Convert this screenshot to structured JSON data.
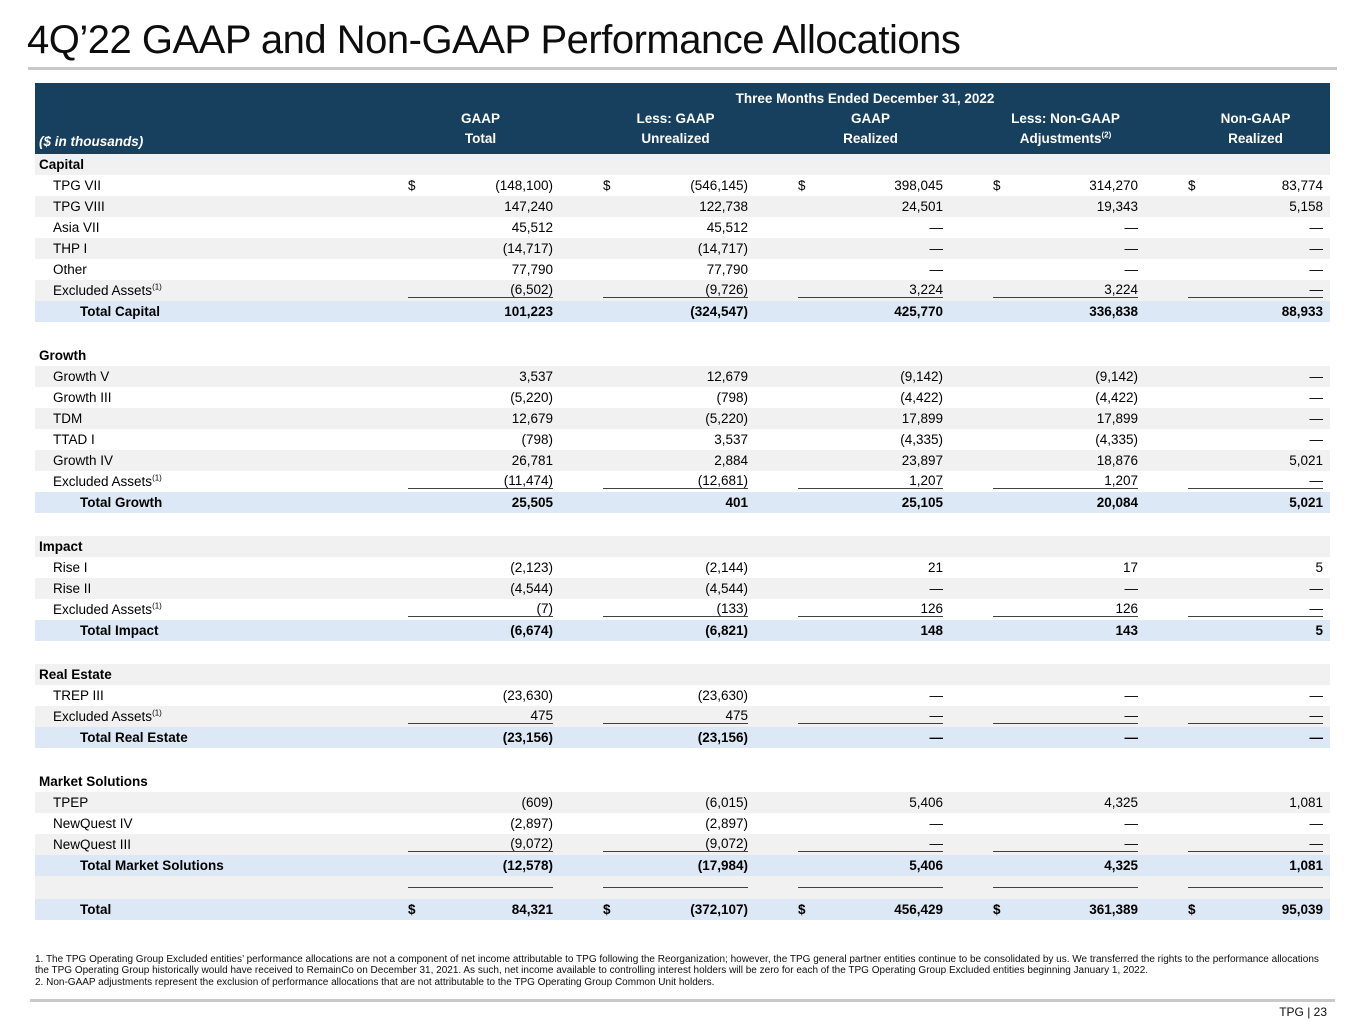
{
  "title": "4Q’22 GAAP and Non-GAAP Performance Allocations",
  "colors": {
    "header_navy": "#17405f",
    "total_row_blue": "#dce8f5",
    "stripe_gray": "#f2f1f1",
    "divider_gray": "#c9c9c9"
  },
  "table": {
    "period_header": "Three Months Ended December 31, 2022",
    "units_note": "($ in thousands)",
    "columns": [
      {
        "line1": "GAAP",
        "line2": "Total"
      },
      {
        "line1": "Less: GAAP",
        "line2": "Unrealized"
      },
      {
        "line1": "GAAP",
        "line2": "Realized"
      },
      {
        "line1": "Less: Non-GAAP",
        "line2": "Adjustments",
        "sup": "(2)"
      },
      {
        "line1": "Non-GAAP",
        "line2": "Realized"
      }
    ],
    "rows": [
      {
        "type": "section",
        "label": "Capital",
        "shade": "gray"
      },
      {
        "type": "item",
        "label": "TPG VII",
        "shade": "white",
        "dollars": true,
        "values": [
          "(148,100)",
          "(546,145)",
          "398,045",
          "314,270",
          "83,774"
        ]
      },
      {
        "type": "item",
        "label": "TPG VIII",
        "shade": "gray",
        "values": [
          "147,240",
          "122,738",
          "24,501",
          "19,343",
          "5,158"
        ]
      },
      {
        "type": "item",
        "label": "Asia VII",
        "shade": "white",
        "values": [
          "45,512",
          "45,512",
          "—",
          "—",
          "—"
        ]
      },
      {
        "type": "item",
        "label": "THP I",
        "shade": "gray",
        "values": [
          "(14,717)",
          "(14,717)",
          "—",
          "—",
          "—"
        ]
      },
      {
        "type": "item",
        "label": "Other",
        "shade": "white",
        "values": [
          "77,790",
          "77,790",
          "—",
          "—",
          "—"
        ]
      },
      {
        "type": "item",
        "label": "Excluded Assets",
        "sup": "(1)",
        "shade": "gray",
        "rule": true,
        "values": [
          "(6,502)",
          "(9,726)",
          "3,224",
          "3,224",
          "—"
        ]
      },
      {
        "type": "total",
        "label": "Total Capital",
        "shade": "blue",
        "values": [
          "101,223",
          "(324,547)",
          "425,770",
          "336,838",
          "88,933"
        ]
      },
      {
        "type": "spacer",
        "shade": "white"
      },
      {
        "type": "section",
        "label": "Growth",
        "shade": "white"
      },
      {
        "type": "item",
        "label": "Growth V",
        "shade": "gray",
        "values": [
          "3,537",
          "12,679",
          "(9,142)",
          "(9,142)",
          "—"
        ]
      },
      {
        "type": "item",
        "label": "Growth III",
        "shade": "white",
        "values": [
          "(5,220)",
          "(798)",
          "(4,422)",
          "(4,422)",
          "—"
        ]
      },
      {
        "type": "item",
        "label": "TDM",
        "shade": "gray",
        "values": [
          "12,679",
          "(5,220)",
          "17,899",
          "17,899",
          "—"
        ]
      },
      {
        "type": "item",
        "label": "TTAD I",
        "shade": "white",
        "values": [
          "(798)",
          "3,537",
          "(4,335)",
          "(4,335)",
          "—"
        ]
      },
      {
        "type": "item",
        "label": "Growth IV",
        "shade": "gray",
        "values": [
          "26,781",
          "2,884",
          "23,897",
          "18,876",
          "5,021"
        ]
      },
      {
        "type": "item",
        "label": "Excluded Assets",
        "sup": "(1)",
        "shade": "white",
        "rule": true,
        "values": [
          "(11,474)",
          "(12,681)",
          "1,207",
          "1,207",
          "—"
        ]
      },
      {
        "type": "total",
        "label": "Total Growth",
        "shade": "blue",
        "values": [
          "25,505",
          "401",
          "25,105",
          "20,084",
          "5,021"
        ]
      },
      {
        "type": "spacer",
        "shade": "white"
      },
      {
        "type": "section",
        "label": "Impact",
        "shade": "gray"
      },
      {
        "type": "item",
        "label": "Rise I",
        "shade": "white",
        "values": [
          "(2,123)",
          "(2,144)",
          "21",
          "17",
          "5"
        ]
      },
      {
        "type": "item",
        "label": "Rise II",
        "shade": "gray",
        "values": [
          "(4,544)",
          "(4,544)",
          "—",
          "—",
          "—"
        ]
      },
      {
        "type": "item",
        "label": "Excluded Assets",
        "sup": "(1)",
        "shade": "white",
        "rule": true,
        "values": [
          "(7)",
          "(133)",
          "126",
          "126",
          "—"
        ]
      },
      {
        "type": "total",
        "label": "Total Impact",
        "shade": "blue",
        "values": [
          "(6,674)",
          "(6,821)",
          "148",
          "143",
          "5"
        ]
      },
      {
        "type": "spacer",
        "shade": "white"
      },
      {
        "type": "section",
        "label": "Real Estate",
        "shade": "gray"
      },
      {
        "type": "item",
        "label": "TREP III",
        "shade": "white",
        "values": [
          "(23,630)",
          "(23,630)",
          "—",
          "—",
          "—"
        ]
      },
      {
        "type": "item",
        "label": "Excluded Assets",
        "sup": "(1)",
        "shade": "gray",
        "rule": true,
        "values": [
          "475",
          "475",
          "—",
          "—",
          "—"
        ]
      },
      {
        "type": "total",
        "label": "Total Real Estate",
        "shade": "blue",
        "values": [
          "(23,156)",
          "(23,156)",
          "—",
          "—",
          "—"
        ]
      },
      {
        "type": "spacer",
        "shade": "white"
      },
      {
        "type": "section",
        "label": "Market Solutions",
        "shade": "white"
      },
      {
        "type": "item",
        "label": "TPEP",
        "shade": "gray",
        "values": [
          "(609)",
          "(6,015)",
          "5,406",
          "4,325",
          "1,081"
        ]
      },
      {
        "type": "item",
        "label": "NewQuest IV",
        "shade": "white",
        "values": [
          "(2,897)",
          "(2,897)",
          "—",
          "—",
          "—"
        ]
      },
      {
        "type": "item",
        "label": "NewQuest III",
        "shade": "gray",
        "rule": true,
        "values": [
          "(9,072)",
          "(9,072)",
          "—",
          "—",
          "—"
        ]
      },
      {
        "type": "total",
        "label": "Total Market Solutions",
        "shade": "blue",
        "values": [
          "(12,578)",
          "(17,984)",
          "5,406",
          "4,325",
          "1,081"
        ]
      },
      {
        "type": "spacer",
        "shade": "gray",
        "rule": true
      },
      {
        "type": "total",
        "label": "Total",
        "shade": "blue",
        "dollars": true,
        "values": [
          "84,321",
          "(372,107)",
          "456,429",
          "361,389",
          "95,039"
        ]
      }
    ]
  },
  "footnotes": [
    "1. The TPG Operating Group Excluded entities’ performance allocations are not a component of net income attributable to TPG following the Reorganization; however, the TPG general partner entities continue to be consolidated by us. We transferred the rights to the performance allocations the TPG Operating Group historically would have received to RemainCo on December 31, 2021. As such, net income available to controlling interest holders will be zero for each of the TPG Operating Group Excluded entities beginning January 1, 2022.",
    "2. Non-GAAP adjustments represent the exclusion of performance allocations that are not attributable to the TPG Operating Group Common Unit holders."
  ],
  "footer": {
    "page_label": "TPG | 23"
  }
}
